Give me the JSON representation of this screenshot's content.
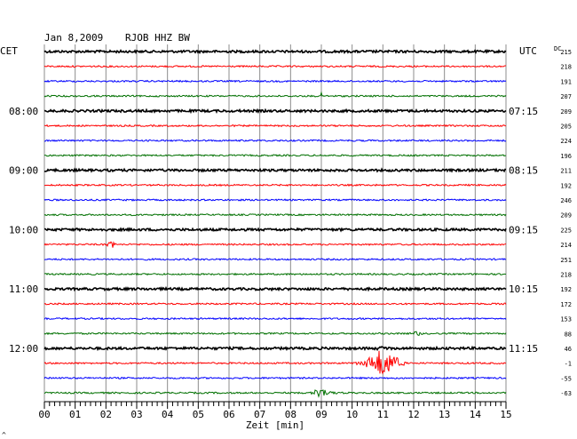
{
  "header": {
    "date": "Jan 8,2009",
    "station": "RJOB HHZ BW",
    "left_tz": "CET",
    "right_tz": "UTC",
    "dc_label": "DC"
  },
  "axis": {
    "xlabel": "Zeit [min]",
    "ticks": [
      "00",
      "01",
      "02",
      "03",
      "04",
      "05",
      "06",
      "07",
      "08",
      "09",
      "10",
      "11",
      "12",
      "13",
      "14",
      "15"
    ]
  },
  "hour_labels": {
    "left": [
      "08:00",
      "09:00",
      "10:00",
      "11:00",
      "12:00"
    ],
    "right": [
      "07:15",
      "08:15",
      "09:15",
      "10:15",
      "11:15"
    ]
  },
  "dc_values": [
    "215",
    "218",
    "191",
    "207",
    "209",
    "205",
    "224",
    "196",
    "211",
    "192",
    "246",
    "209",
    "225",
    "214",
    "251",
    "218",
    "192",
    "172",
    "153",
    "88",
    "46",
    "-1",
    "-55",
    "-63"
  ],
  "trace_colors": [
    "#000000",
    "#ff0000",
    "#0000ff",
    "#007000"
  ],
  "events": [
    {
      "trace": 13,
      "minute": 2.2,
      "amplitude": 5,
      "duration_min": 0.6
    },
    {
      "trace": 3,
      "minute": 9.0,
      "amplitude": 4,
      "duration_min": 0.2
    },
    {
      "trace": 19,
      "minute": 12.1,
      "amplitude": 4,
      "duration_min": 0.5
    },
    {
      "trace": 20,
      "minute": 11.0,
      "amplitude": 3,
      "duration_min": 0.6
    },
    {
      "trace": 21,
      "minute": 11.0,
      "amplitude": 18,
      "duration_min": 2.2
    },
    {
      "trace": 23,
      "minute": 9.0,
      "amplitude": 6,
      "duration_min": 1.3
    }
  ],
  "footer_mark": "^"
}
